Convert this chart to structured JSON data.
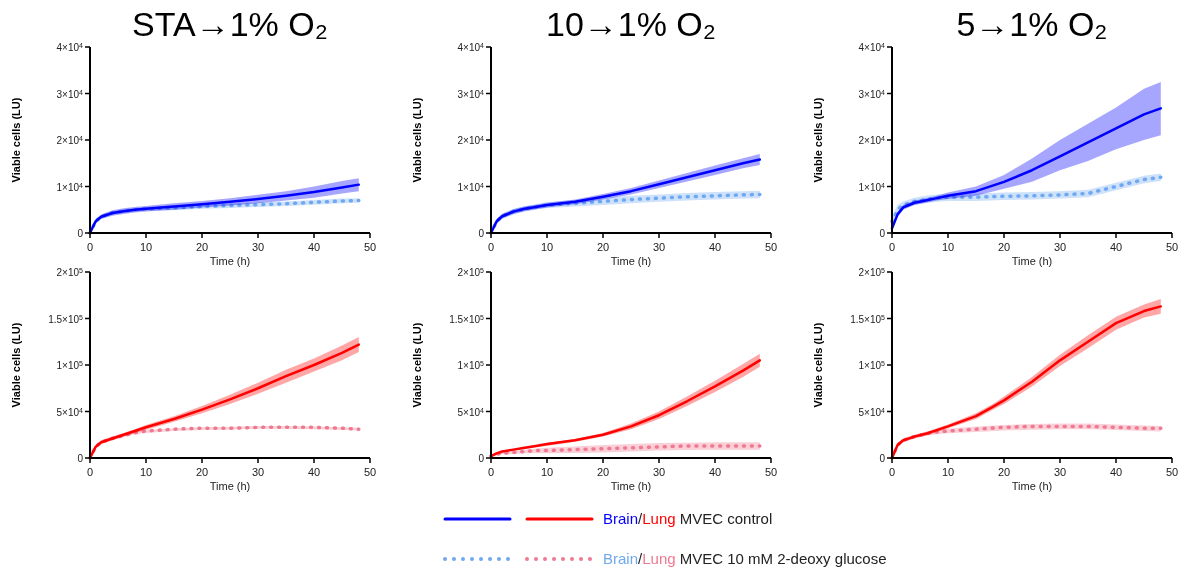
{
  "chart_data": [
    {
      "type": "line",
      "title": "STA→1% O₂",
      "xlabel": "Time (h)",
      "ylabel": "Viable cells (LU)",
      "xlim": [
        0,
        50
      ],
      "xticks": [
        0,
        10,
        20,
        30,
        40,
        50
      ],
      "ylim": [
        0,
        40000
      ],
      "yticks": [
        {
          "value": 0,
          "label": "0"
        },
        {
          "value": 10000,
          "label": "1×10$^{4}$"
        },
        {
          "value": 20000,
          "label": "2×10$^{4}$"
        },
        {
          "value": 30000,
          "label": "3×10$^{4}$"
        },
        {
          "value": 40000,
          "label": "4×10$^{4}$"
        }
      ],
      "x": [
        0,
        1,
        2,
        4,
        6,
        8,
        10,
        15,
        20,
        25,
        30,
        35,
        40,
        45,
        48
      ],
      "series": [
        {
          "color": "#0000ff",
          "line_style": "solid",
          "values": [
            0,
            2500,
            3500,
            4300,
            4700,
            5000,
            5200,
            5700,
            6200,
            6700,
            7300,
            8000,
            8800,
            9800,
            10400
          ],
          "lower": [
            0,
            2000,
            3000,
            3700,
            4100,
            4400,
            4600,
            5000,
            5500,
            5900,
            6400,
            7000,
            7600,
            8500,
            9000
          ],
          "upper": [
            0,
            3000,
            4000,
            4900,
            5300,
            5600,
            5800,
            6400,
            6900,
            7500,
            8200,
            9000,
            10000,
            11200,
            11800
          ]
        },
        {
          "color": "#6fa8f0",
          "line_style": "dotted",
          "values": [
            0,
            2500,
            3500,
            4300,
            4700,
            5000,
            5200,
            5400,
            5700,
            5900,
            6100,
            6300,
            6600,
            6900,
            7000
          ],
          "lower": [
            0,
            2200,
            3100,
            3900,
            4300,
            4600,
            4800,
            4900,
            5200,
            5400,
            5600,
            5800,
            6100,
            6400,
            6500
          ],
          "upper": [
            0,
            2800,
            3900,
            4700,
            5100,
            5400,
            5600,
            5900,
            6200,
            6400,
            6600,
            6800,
            7100,
            7400,
            7500
          ]
        }
      ]
    },
    {
      "type": "line",
      "title": "10→1% O₂",
      "xlabel": "Time (h)",
      "ylabel": "Viable cells (LU)",
      "xlim": [
        0,
        50
      ],
      "xticks": [
        0,
        10,
        20,
        30,
        40,
        50
      ],
      "ylim": [
        0,
        40000
      ],
      "yticks": [
        {
          "value": 0,
          "label": "0"
        },
        {
          "value": 10000,
          "label": "1×10$^{4}$"
        },
        {
          "value": 20000,
          "label": "2×10$^{4}$"
        },
        {
          "value": 30000,
          "label": "3×10$^{4}$"
        },
        {
          "value": 40000,
          "label": "4×10$^{4}$"
        }
      ],
      "x": [
        0,
        1,
        2,
        4,
        6,
        8,
        10,
        15,
        20,
        25,
        30,
        35,
        40,
        45,
        48
      ],
      "series": [
        {
          "color": "#0000ff",
          "line_style": "solid",
          "values": [
            0,
            2500,
            3600,
            4600,
            5200,
            5600,
            6000,
            6700,
            7800,
            9000,
            10500,
            12000,
            13500,
            15000,
            15800
          ],
          "lower": [
            0,
            2000,
            3100,
            4100,
            4700,
            5100,
            5500,
            6200,
            7200,
            8300,
            9700,
            11100,
            12500,
            13900,
            14600
          ],
          "upper": [
            0,
            3000,
            4100,
            5100,
            5700,
            6100,
            6500,
            7200,
            8400,
            9700,
            11300,
            12900,
            14500,
            16100,
            17000
          ]
        },
        {
          "color": "#6fa8f0",
          "line_style": "dotted",
          "values": [
            0,
            2500,
            3600,
            4600,
            5200,
            5600,
            6000,
            6400,
            6800,
            7200,
            7500,
            7800,
            8000,
            8200,
            8300
          ],
          "lower": [
            0,
            2000,
            3000,
            4000,
            4600,
            5000,
            5400,
            5700,
            6000,
            6400,
            6700,
            7000,
            7200,
            7400,
            7500
          ],
          "upper": [
            0,
            3000,
            4200,
            5200,
            5800,
            6200,
            6600,
            7100,
            7600,
            8000,
            8300,
            8600,
            8800,
            9000,
            9100
          ]
        }
      ]
    },
    {
      "type": "line",
      "title": "5→1% O₂",
      "xlabel": "Time (h)",
      "ylabel": "Viable cells (LU)",
      "xlim": [
        0,
        50
      ],
      "xticks": [
        0,
        10,
        20,
        30,
        40,
        50
      ],
      "ylim": [
        0,
        40000
      ],
      "yticks": [
        {
          "value": 0,
          "label": "0"
        },
        {
          "value": 10000,
          "label": "1×10$^{4}$"
        },
        {
          "value": 20000,
          "label": "2×10$^{4}$"
        },
        {
          "value": 30000,
          "label": "3×10$^{4}$"
        },
        {
          "value": 40000,
          "label": "4×10$^{4}$"
        }
      ],
      "x": [
        0,
        1,
        2,
        4,
        6,
        8,
        10,
        15,
        20,
        25,
        30,
        35,
        40,
        45,
        48
      ],
      "series": [
        {
          "color": "#0000ff",
          "line_style": "solid",
          "values": [
            1000,
            4000,
            5500,
            6500,
            7000,
            7500,
            8000,
            9000,
            11000,
            13500,
            16500,
            19500,
            22500,
            25500,
            26800
          ],
          "lower": [
            500,
            3500,
            5000,
            6000,
            6500,
            7000,
            7300,
            8000,
            9500,
            11000,
            13500,
            15500,
            18000,
            20000,
            21000
          ],
          "upper": [
            1500,
            4500,
            6000,
            7000,
            7500,
            8000,
            8700,
            10000,
            12500,
            16000,
            20000,
            23500,
            27000,
            31000,
            32500
          ]
        },
        {
          "color": "#6fa8f0",
          "line_style": "dotted",
          "values": [
            2500,
            5000,
            6000,
            6800,
            7200,
            7500,
            7700,
            7700,
            7900,
            8000,
            8200,
            8500,
            10000,
            11500,
            12000
          ],
          "lower": [
            1500,
            4000,
            5200,
            6000,
            6400,
            6700,
            6900,
            6900,
            7100,
            7200,
            7400,
            7700,
            9200,
            10700,
            11200
          ],
          "upper": [
            3500,
            6000,
            6800,
            7600,
            8000,
            8300,
            8500,
            8500,
            8700,
            8800,
            9000,
            9300,
            10800,
            12300,
            12800
          ]
        }
      ]
    },
    {
      "type": "line",
      "xlabel": "Time (h)",
      "ylabel": "Viable cells (LU)",
      "xlim": [
        0,
        50
      ],
      "xticks": [
        0,
        10,
        20,
        30,
        40,
        50
      ],
      "ylim": [
        0,
        200000
      ],
      "yticks": [
        {
          "value": 0,
          "label": "0"
        },
        {
          "value": 50000,
          "label": "5×10$^{4}$"
        },
        {
          "value": 100000,
          "label": "1×10$^{5}$"
        },
        {
          "value": 150000,
          "label": "1.5×10$^{5}$"
        },
        {
          "value": 200000,
          "label": "2×10$^{5}$"
        }
      ],
      "x": [
        0,
        1,
        2,
        4,
        6,
        8,
        10,
        15,
        20,
        25,
        30,
        35,
        40,
        45,
        48
      ],
      "series": [
        {
          "color": "#ff0000",
          "line_style": "solid",
          "values": [
            0,
            12000,
            17000,
            21000,
            25000,
            29000,
            33000,
            42000,
            52000,
            63000,
            75000,
            88000,
            100000,
            113000,
            122000
          ],
          "lower": [
            0,
            10000,
            15000,
            19000,
            23000,
            27000,
            30500,
            39000,
            48000,
            58000,
            69000,
            81000,
            93000,
            105000,
            114000
          ],
          "upper": [
            0,
            14000,
            19000,
            23000,
            27000,
            31000,
            35500,
            45000,
            56000,
            68000,
            81000,
            95000,
            107000,
            121000,
            130000
          ]
        },
        {
          "color": "#f07890",
          "line_style": "dotted",
          "values": [
            0,
            12000,
            17000,
            21000,
            24000,
            27000,
            29000,
            31000,
            32000,
            32000,
            33000,
            33000,
            33000,
            32000,
            31000
          ],
          "lower": [
            0,
            11000,
            16000,
            20000,
            22500,
            25500,
            27000,
            29000,
            30000,
            30500,
            31500,
            31500,
            31000,
            30000,
            29500
          ],
          "upper": [
            0,
            13000,
            18000,
            22000,
            25500,
            28500,
            30000,
            32000,
            33000,
            33500,
            34500,
            34500,
            34000,
            33000,
            32500
          ]
        }
      ]
    },
    {
      "type": "line",
      "xlabel": "Time (h)",
      "ylabel": "Viable cells (LU)",
      "xlim": [
        0,
        50
      ],
      "xticks": [
        0,
        10,
        20,
        30,
        40,
        50
      ],
      "ylim": [
        0,
        200000
      ],
      "yticks": [
        {
          "value": 0,
          "label": "0"
        },
        {
          "value": 50000,
          "label": "5×10$^{4}$"
        },
        {
          "value": 100000,
          "label": "1×10$^{5}$"
        },
        {
          "value": 150000,
          "label": "1.5×10$^{5}$"
        },
        {
          "value": 200000,
          "label": "2×10$^{5}$"
        }
      ],
      "x": [
        0,
        1,
        2,
        4,
        6,
        8,
        10,
        15,
        20,
        25,
        30,
        35,
        40,
        45,
        48
      ],
      "annotations": [
        "Brain/Lung MVEC control",
        "Brain/Lung MVEC 10 mM 2-deoxy glucose"
      ],
      "series": [
        {
          "color": "#ff0000",
          "line_style": "solid",
          "values": [
            2000,
            5000,
            7000,
            9000,
            11000,
            13000,
            15000,
            19000,
            25000,
            34000,
            46000,
            61000,
            77000,
            94000,
            105000
          ],
          "lower": [
            1000,
            4000,
            6000,
            8000,
            9500,
            11500,
            13000,
            17500,
            23000,
            31000,
            42000,
            56000,
            71000,
            87000,
            98000
          ],
          "upper": [
            3000,
            6000,
            8000,
            10000,
            11500,
            13500,
            16000,
            20500,
            27000,
            37000,
            50000,
            66000,
            83000,
            101000,
            112000
          ]
        },
        {
          "color": "#f07890",
          "line_style": "dotted",
          "values": [
            2000,
            4000,
            5000,
            6000,
            7000,
            8000,
            8000,
            9000,
            10000,
            11000,
            12000,
            13000,
            13000,
            13000,
            13000
          ],
          "lower": [
            1000,
            3000,
            4000,
            4500,
            5000,
            5000,
            5000,
            5500,
            6000,
            7000,
            8000,
            8500,
            9000,
            9000,
            9000
          ],
          "upper": [
            3000,
            5000,
            6000,
            7500,
            9000,
            10000,
            11000,
            12500,
            14000,
            15000,
            16000,
            16500,
            17000,
            17000,
            17000
          ]
        }
      ]
    },
    {
      "type": "line",
      "xlabel": "Time (h)",
      "ylabel": "Viable cells (LU)",
      "xlim": [
        0,
        50
      ],
      "xticks": [
        0,
        10,
        20,
        30,
        40,
        50
      ],
      "ylim": [
        0,
        200000
      ],
      "yticks": [
        {
          "value": 0,
          "label": "0"
        },
        {
          "value": 50000,
          "label": "5×10$^{4}$"
        },
        {
          "value": 100000,
          "label": "1×10$^{5}$"
        },
        {
          "value": 150000,
          "label": "1.5×10$^{5}$"
        },
        {
          "value": 200000,
          "label": "2×10$^{5}$"
        }
      ],
      "x": [
        0,
        1,
        2,
        4,
        6,
        8,
        10,
        15,
        20,
        25,
        30,
        35,
        40,
        45,
        48
      ],
      "series": [
        {
          "color": "#ff0000",
          "line_style": "solid",
          "x": [
            0,
            1,
            2,
            4,
            6,
            8,
            10,
            15,
            18,
            20,
            25,
            30,
            35,
            40,
            45,
            48
          ],
          "values": [
            0,
            14000,
            19000,
            23000,
            26000,
            30000,
            34000,
            45000,
            55000,
            62000,
            82000,
            105000,
            125000,
            145000,
            158000,
            163000
          ],
          "lower": [
            0,
            12000,
            17000,
            21000,
            24000,
            28000,
            32000,
            42000,
            52000,
            58000,
            77000,
            99000,
            118000,
            138000,
            151000,
            155000
          ],
          "upper": [
            0,
            16000,
            21000,
            25000,
            28000,
            32000,
            36000,
            48000,
            58000,
            66000,
            87000,
            111000,
            132000,
            152000,
            165000,
            171000
          ]
        },
        {
          "color": "#f07890",
          "line_style": "dotted",
          "values": [
            0,
            14000,
            19000,
            23000,
            26000,
            28000,
            29000,
            31000,
            33000,
            34000,
            34000,
            34000,
            33000,
            32000,
            32000
          ],
          "lower": [
            0,
            13000,
            18000,
            22000,
            24000,
            25500,
            26500,
            28000,
            29500,
            30500,
            31000,
            31000,
            30000,
            29000,
            28500
          ],
          "upper": [
            0,
            15000,
            20000,
            24000,
            28000,
            30500,
            31500,
            34000,
            35500,
            36500,
            37000,
            37000,
            36000,
            35000,
            34500
          ]
        }
      ]
    }
  ]
}
